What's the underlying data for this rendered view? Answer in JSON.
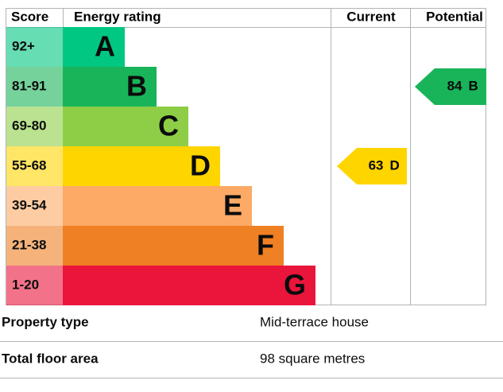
{
  "header": {
    "score": "Score",
    "rating": "Energy rating",
    "current": "Current",
    "potential": "Potential"
  },
  "bands": [
    {
      "range": "92+",
      "letter": "A",
      "color": "#00c781"
    },
    {
      "range": "81-91",
      "letter": "B",
      "color": "#19b459"
    },
    {
      "range": "69-80",
      "letter": "C",
      "color": "#8dce46"
    },
    {
      "range": "55-68",
      "letter": "D",
      "color": "#ffd500"
    },
    {
      "range": "39-54",
      "letter": "E",
      "color": "#fcaa65"
    },
    {
      "range": "21-38",
      "letter": "F",
      "color": "#ef8023"
    },
    {
      "range": "1-20",
      "letter": "G",
      "color": "#e9153b"
    }
  ],
  "current": {
    "value": 63,
    "letter": "D"
  },
  "potential": {
    "value": 84,
    "letter": "B"
  },
  "properties": [
    {
      "label": "Property type",
      "value": "Mid-terrace house"
    },
    {
      "label": "Total floor area",
      "value": "98 square metres"
    }
  ]
}
